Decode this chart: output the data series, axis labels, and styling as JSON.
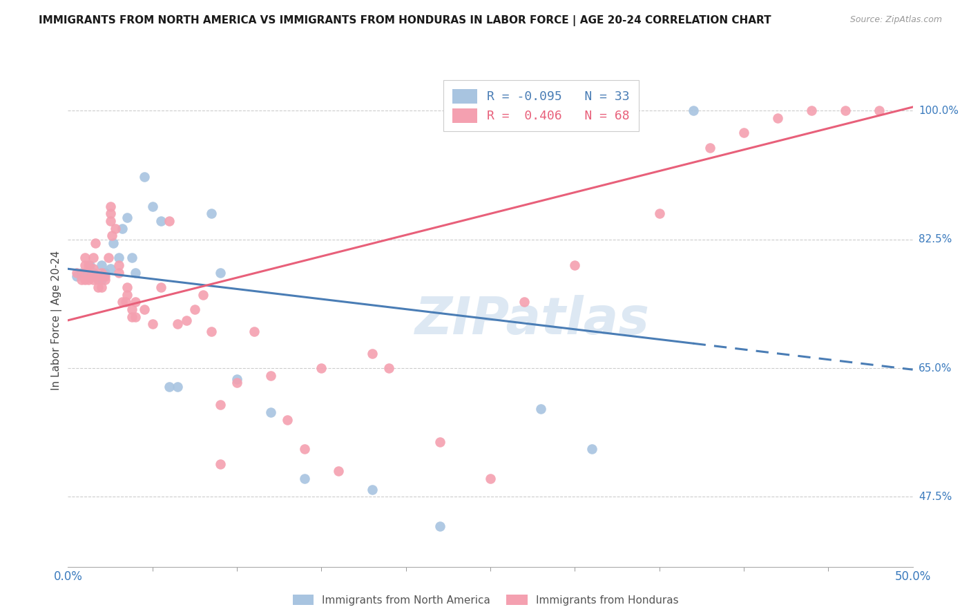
{
  "title": "IMMIGRANTS FROM NORTH AMERICA VS IMMIGRANTS FROM HONDURAS IN LABOR FORCE | AGE 20-24 CORRELATION CHART",
  "source": "Source: ZipAtlas.com",
  "ylabel": "In Labor Force | Age 20-24",
  "xlim": [
    0.0,
    0.5
  ],
  "ylim": [
    0.38,
    1.05
  ],
  "ytick_vals": [
    0.475,
    0.65,
    0.825,
    1.0
  ],
  "ytick_labels": [
    "47.5%",
    "65.0%",
    "82.5%",
    "100.0%"
  ],
  "blue_R": -0.095,
  "blue_N": 33,
  "pink_R": 0.406,
  "pink_N": 68,
  "blue_color": "#a8c4e0",
  "pink_color": "#f4a0b0",
  "blue_line_color": "#4a7db5",
  "pink_line_color": "#e8607a",
  "legend_blue_label": "Immigrants from North America",
  "legend_pink_label": "Immigrants from Honduras",
  "watermark": "ZIPatlas",
  "blue_line_x0": 0.0,
  "blue_line_y0": 0.785,
  "blue_line_x1": 0.5,
  "blue_line_y1": 0.648,
  "blue_line_solid_end": 0.37,
  "pink_line_x0": 0.0,
  "pink_line_y0": 0.715,
  "pink_line_x1": 0.5,
  "pink_line_y1": 1.005,
  "blue_scatter_x": [
    0.005,
    0.008,
    0.01,
    0.012,
    0.013,
    0.015,
    0.016,
    0.018,
    0.02,
    0.02,
    0.022,
    0.025,
    0.027,
    0.03,
    0.032,
    0.035,
    0.038,
    0.04,
    0.045,
    0.05,
    0.055,
    0.06,
    0.065,
    0.085,
    0.09,
    0.1,
    0.12,
    0.14,
    0.18,
    0.22,
    0.28,
    0.31,
    0.37
  ],
  "blue_scatter_y": [
    0.775,
    0.78,
    0.78,
    0.775,
    0.79,
    0.78,
    0.775,
    0.775,
    0.77,
    0.79,
    0.78,
    0.785,
    0.82,
    0.8,
    0.84,
    0.855,
    0.8,
    0.78,
    0.91,
    0.87,
    0.85,
    0.625,
    0.625,
    0.86,
    0.78,
    0.635,
    0.59,
    0.5,
    0.485,
    0.435,
    0.595,
    0.54,
    1.0
  ],
  "pink_scatter_x": [
    0.005,
    0.008,
    0.01,
    0.01,
    0.01,
    0.01,
    0.012,
    0.012,
    0.014,
    0.015,
    0.015,
    0.015,
    0.015,
    0.016,
    0.018,
    0.018,
    0.02,
    0.02,
    0.02,
    0.022,
    0.022,
    0.024,
    0.025,
    0.025,
    0.025,
    0.026,
    0.028,
    0.03,
    0.03,
    0.032,
    0.034,
    0.035,
    0.035,
    0.038,
    0.038,
    0.04,
    0.04,
    0.045,
    0.05,
    0.055,
    0.06,
    0.065,
    0.07,
    0.075,
    0.08,
    0.085,
    0.09,
    0.09,
    0.1,
    0.11,
    0.12,
    0.13,
    0.14,
    0.15,
    0.16,
    0.18,
    0.19,
    0.22,
    0.25,
    0.27,
    0.3,
    0.35,
    0.38,
    0.4,
    0.42,
    0.44,
    0.46,
    0.48
  ],
  "pink_scatter_y": [
    0.78,
    0.77,
    0.77,
    0.78,
    0.79,
    0.8,
    0.77,
    0.79,
    0.775,
    0.77,
    0.775,
    0.785,
    0.8,
    0.82,
    0.76,
    0.77,
    0.76,
    0.775,
    0.78,
    0.77,
    0.775,
    0.8,
    0.85,
    0.86,
    0.87,
    0.83,
    0.84,
    0.78,
    0.79,
    0.74,
    0.74,
    0.75,
    0.76,
    0.72,
    0.73,
    0.72,
    0.74,
    0.73,
    0.71,
    0.76,
    0.85,
    0.71,
    0.715,
    0.73,
    0.75,
    0.7,
    0.52,
    0.6,
    0.63,
    0.7,
    0.64,
    0.58,
    0.54,
    0.65,
    0.51,
    0.67,
    0.65,
    0.55,
    0.5,
    0.74,
    0.79,
    0.86,
    0.95,
    0.97,
    0.99,
    1.0,
    1.0,
    1.0
  ]
}
